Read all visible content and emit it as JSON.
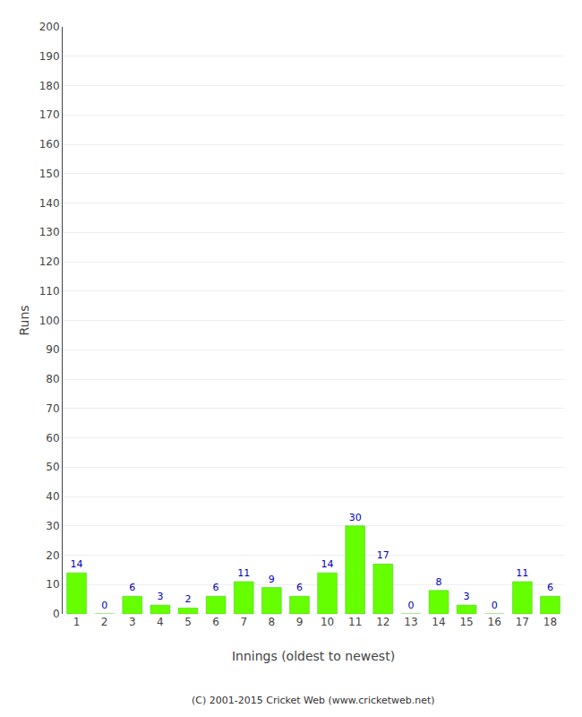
{
  "chart_data": {
    "type": "bar",
    "xlabel": "Innings (oldest to newest)",
    "ylabel": "Runs",
    "categories": [
      1,
      2,
      3,
      4,
      5,
      6,
      7,
      8,
      9,
      10,
      11,
      12,
      13,
      14,
      15,
      16,
      17,
      18
    ],
    "values": [
      14,
      0,
      6,
      3,
      2,
      6,
      11,
      9,
      6,
      14,
      30,
      17,
      0,
      8,
      3,
      0,
      11,
      6
    ],
    "color": "#66ff00",
    "ylim": [
      0,
      200
    ],
    "yticks": [
      0,
      10,
      20,
      30,
      40,
      50,
      60,
      70,
      80,
      90,
      100,
      110,
      120,
      130,
      140,
      150,
      160,
      170,
      180,
      190,
      200
    ],
    "grid": true,
    "data_labels": true,
    "annotations": [
      "(C) 2001-2015 Cricket Web (www.cricketweb.net)"
    ]
  }
}
